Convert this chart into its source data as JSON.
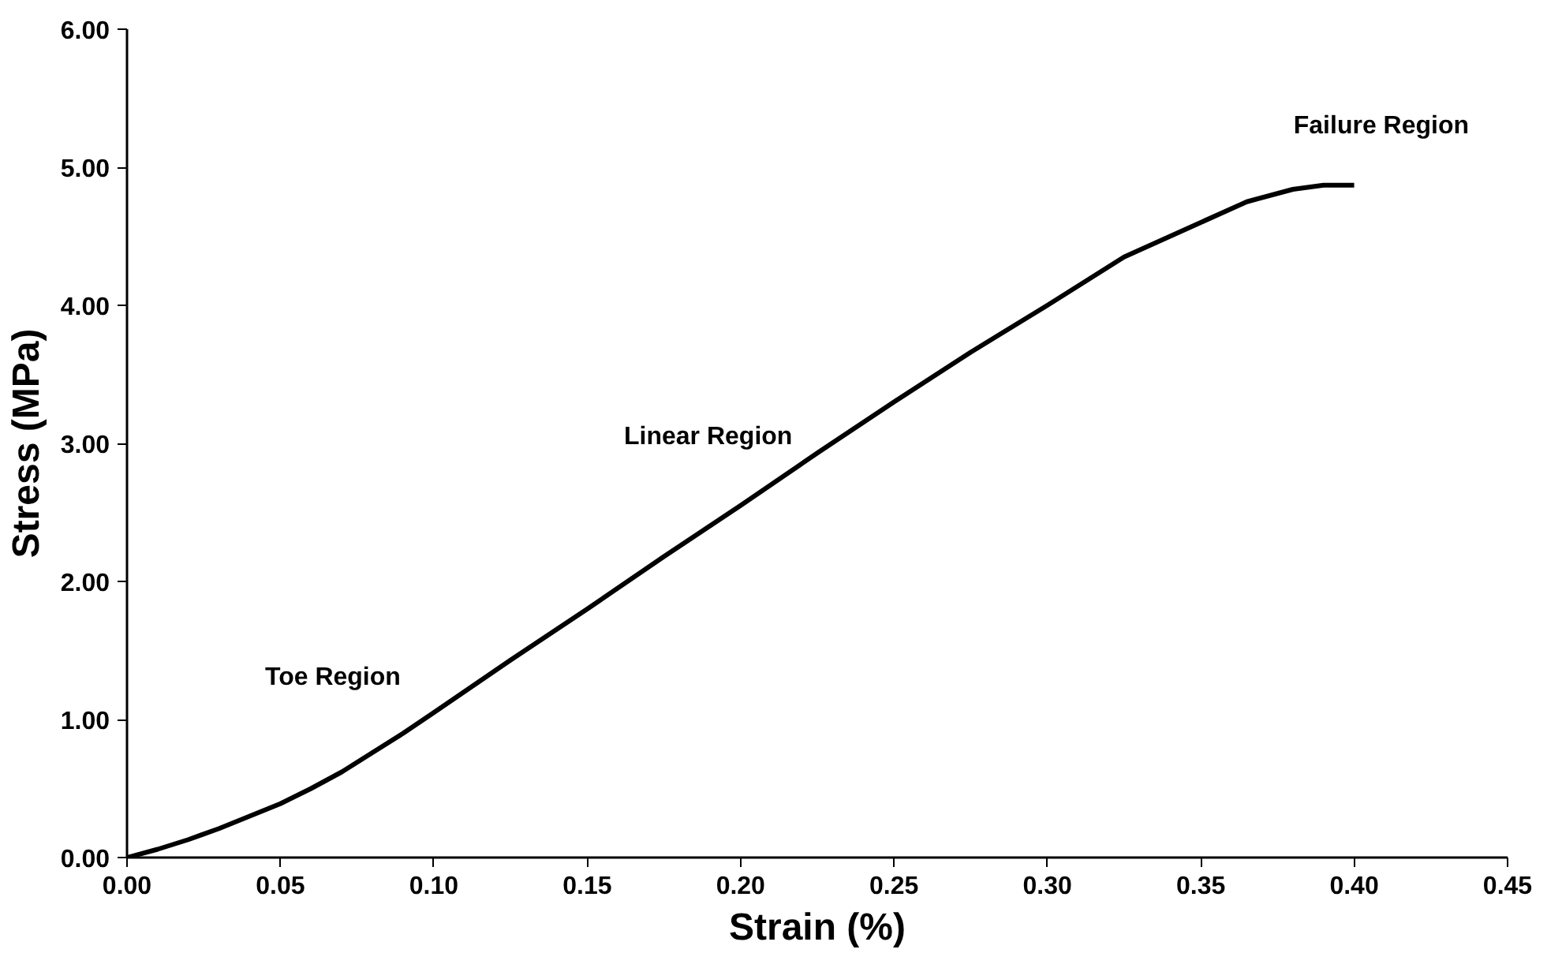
{
  "chart_data": {
    "type": "line",
    "xlabel": "Strain (%)",
    "ylabel": "Stress (MPa)",
    "x": [
      0,
      0.01,
      0.02,
      0.03,
      0.04,
      0.05,
      0.06,
      0.07,
      0.08,
      0.09,
      0.1,
      0.125,
      0.15,
      0.175,
      0.2,
      0.225,
      0.25,
      0.275,
      0.3,
      0.325,
      0.35,
      0.365,
      0.38,
      0.39,
      0.4
    ],
    "series": [
      {
        "color": "#000000",
        "values": [
          0,
          0.06,
          0.13,
          0.21,
          0.3,
          0.39,
          0.5,
          0.62,
          0.76,
          0.9,
          1.05,
          1.43,
          1.8,
          2.18,
          2.55,
          2.93,
          3.3,
          3.66,
          4.0,
          4.35,
          4.6,
          4.75,
          4.84,
          4.87,
          4.87
        ]
      }
    ],
    "xlim": [
      0,
      0.45
    ],
    "ylim": [
      0,
      6
    ],
    "xticks": [
      {
        "value": 0,
        "label": "0.00"
      },
      {
        "value": 0.05,
        "label": "0.05"
      },
      {
        "value": 0.1,
        "label": "0.10"
      },
      {
        "value": 0.15,
        "label": "0.15"
      },
      {
        "value": 0.2,
        "label": "0.20"
      },
      {
        "value": 0.25,
        "label": "0.25"
      },
      {
        "value": 0.3,
        "label": "0.30"
      },
      {
        "value": 0.35,
        "label": "0.35"
      },
      {
        "value": 0.4,
        "label": "0.40"
      },
      {
        "value": 0.45,
        "label": "0.45"
      }
    ],
    "yticks": [
      {
        "value": 0,
        "label": "0.00"
      },
      {
        "value": 1,
        "label": "1.00"
      },
      {
        "value": 2,
        "label": "2.00"
      },
      {
        "value": 3,
        "label": "3.00"
      },
      {
        "value": 4,
        "label": "4.00"
      },
      {
        "value": 5,
        "label": "5.00"
      },
      {
        "value": 6,
        "label": "6.00"
      }
    ],
    "annotations": [
      "Toe Region",
      "Linear Region",
      "Failure Region"
    ],
    "line_style": "solid"
  }
}
